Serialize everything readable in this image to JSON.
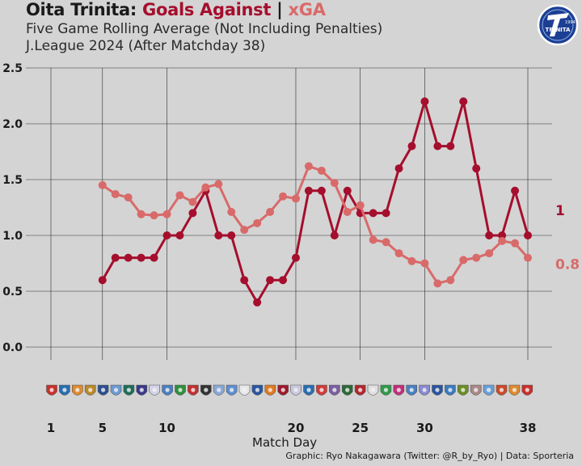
{
  "header": {
    "title_team": "Oita Trinita:",
    "title_goals_against": "Goals Against",
    "title_separator": "|",
    "title_xga": "xGA",
    "subtitle_line1": "Five Game Rolling Average (Not Including Penalties)",
    "subtitle_line2": "J.League 2024 (After Matchday 38)"
  },
  "logo": {
    "icon": "oita-trinita-crest-icon",
    "text": "TRINITA",
    "year": "1994"
  },
  "colors": {
    "goals_against": "#a50e2d",
    "xga": "#d96a6a",
    "background": "#d4d4d4"
  },
  "footer": {
    "xlabel": "Match Day",
    "credit": "Graphic: Ryo Nakagawara (Twitter: @R_by_Ryo) | Data: Sporteria"
  },
  "chart_data": {
    "type": "line",
    "xlabel": "Match Day",
    "ylabel": "",
    "xlim": [
      1,
      38
    ],
    "ylim": [
      0,
      2.5
    ],
    "x_ticks": [
      1,
      5,
      10,
      20,
      25,
      30,
      38
    ],
    "y_ticks": [
      0.0,
      0.5,
      1.0,
      1.5,
      2.0,
      2.5
    ],
    "y_tick_labels": [
      "0.0",
      "0.5",
      "1.0",
      "1.5",
      "2.0",
      "2.5"
    ],
    "grid": true,
    "series": [
      {
        "name": "Goals Against",
        "color": "#a50e2d",
        "end_label": "1",
        "x": [
          5,
          6,
          7,
          8,
          9,
          10,
          11,
          12,
          13,
          14,
          15,
          16,
          17,
          18,
          19,
          20,
          21,
          22,
          23,
          24,
          25,
          26,
          27,
          28,
          29,
          30,
          31,
          32,
          33,
          34,
          35,
          36,
          37,
          38
        ],
        "values": [
          0.6,
          0.8,
          0.8,
          0.8,
          0.8,
          1.0,
          1.0,
          1.2,
          1.4,
          1.0,
          1.0,
          0.6,
          0.4,
          0.6,
          0.6,
          0.8,
          1.4,
          1.4,
          1.0,
          1.4,
          1.2,
          1.2,
          1.2,
          1.6,
          1.8,
          2.2,
          1.8,
          1.8,
          2.2,
          1.6,
          1.0,
          1.0,
          1.4,
          1.0
        ]
      },
      {
        "name": "xGA",
        "color": "#d96a6a",
        "end_label": "0.8",
        "x": [
          5,
          6,
          7,
          8,
          9,
          10,
          11,
          12,
          13,
          14,
          15,
          16,
          17,
          18,
          19,
          20,
          21,
          22,
          23,
          24,
          25,
          26,
          27,
          28,
          29,
          30,
          31,
          32,
          33,
          34,
          35,
          36,
          37,
          38
        ],
        "values": [
          1.45,
          1.37,
          1.34,
          1.19,
          1.18,
          1.19,
          1.36,
          1.3,
          1.43,
          1.46,
          1.21,
          1.05,
          1.11,
          1.21,
          1.35,
          1.33,
          1.62,
          1.58,
          1.47,
          1.21,
          1.27,
          0.96,
          0.94,
          0.84,
          0.77,
          0.75,
          0.57,
          0.6,
          0.78,
          0.8,
          0.84,
          0.95,
          0.93,
          0.8
        ]
      }
    ]
  }
}
